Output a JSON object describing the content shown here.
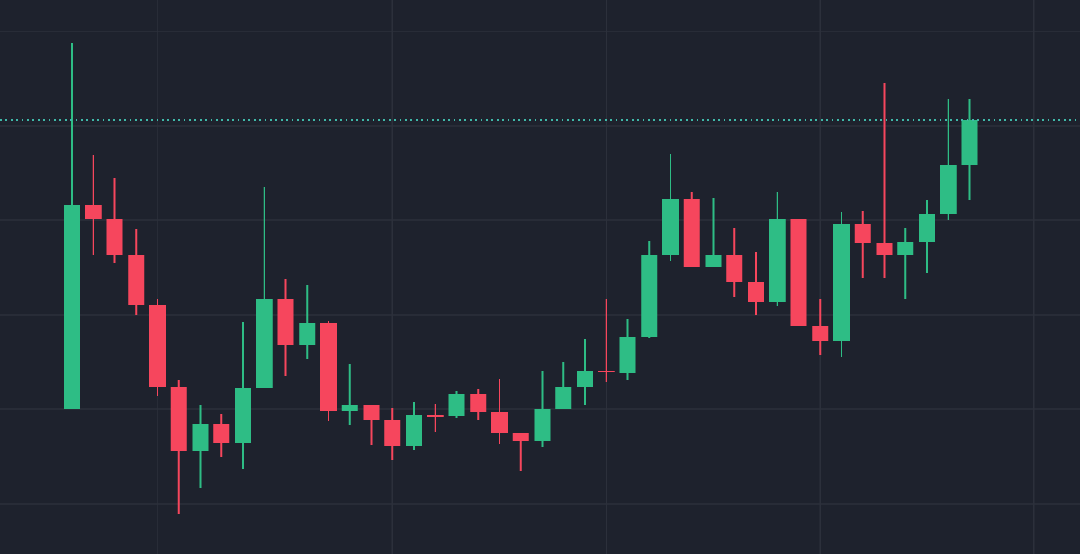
{
  "chart_data": {
    "type": "candlestick",
    "categories": [
      null,
      null,
      null,
      null,
      null,
      null,
      null,
      null,
      null,
      null,
      null,
      null,
      null,
      null,
      null,
      null,
      null,
      null,
      null,
      null,
      null,
      null,
      null,
      null,
      null,
      null,
      null,
      null,
      null,
      null,
      null,
      null,
      null,
      null,
      null,
      null,
      null,
      null,
      null,
      null,
      null,
      null,
      null
    ],
    "open": [
      161,
      388,
      372,
      332,
      277,
      186,
      115,
      145,
      123,
      185,
      283,
      232,
      257,
      159,
      166,
      149,
      120,
      155,
      153,
      178,
      158,
      134,
      126,
      161,
      186,
      204,
      201,
      241,
      332,
      395,
      319,
      333,
      302,
      280,
      372,
      254,
      237,
      367,
      346,
      332,
      347,
      378,
      432
    ],
    "high": [
      568,
      444,
      418,
      361,
      284,
      194,
      166,
      156,
      258,
      408,
      306,
      299,
      259,
      211,
      166,
      162,
      169,
      167,
      181,
      184,
      195,
      134,
      204,
      213,
      239,
      284,
      261,
      348,
      445,
      403,
      396,
      363,
      336,
      402,
      373,
      283,
      380,
      381,
      524,
      363,
      394,
      506,
      506
    ],
    "low": [
      161,
      333,
      324,
      266,
      176,
      45,
      73,
      108,
      95,
      185,
      198,
      217,
      148,
      143,
      121,
      104,
      116,
      136,
      151,
      149,
      122,
      92,
      119,
      161,
      166,
      191,
      194,
      240,
      326,
      319,
      319,
      286,
      266,
      276,
      254,
      221,
      219,
      307,
      307,
      284,
      313,
      371,
      394
    ],
    "close": [
      388,
      372,
      332,
      277,
      186,
      115,
      145,
      123,
      185,
      283,
      232,
      257,
      159,
      166,
      149,
      120,
      154,
      152,
      178,
      158,
      134,
      126,
      161,
      186,
      204,
      202,
      241,
      332,
      395,
      319,
      333,
      302,
      280,
      372,
      254,
      237,
      367,
      346,
      332,
      347,
      378,
      432,
      483
    ],
    "up_color": "#2ebd85",
    "down_color": "#f6465d",
    "ylim": [
      0,
      616
    ],
    "ygrid": [
      56,
      161,
      266,
      371,
      476,
      581
    ],
    "xgrid": [
      4,
      15,
      25,
      35,
      45
    ],
    "price_line": 483,
    "price_line_color": "#3fb8a8",
    "grid": true
  }
}
